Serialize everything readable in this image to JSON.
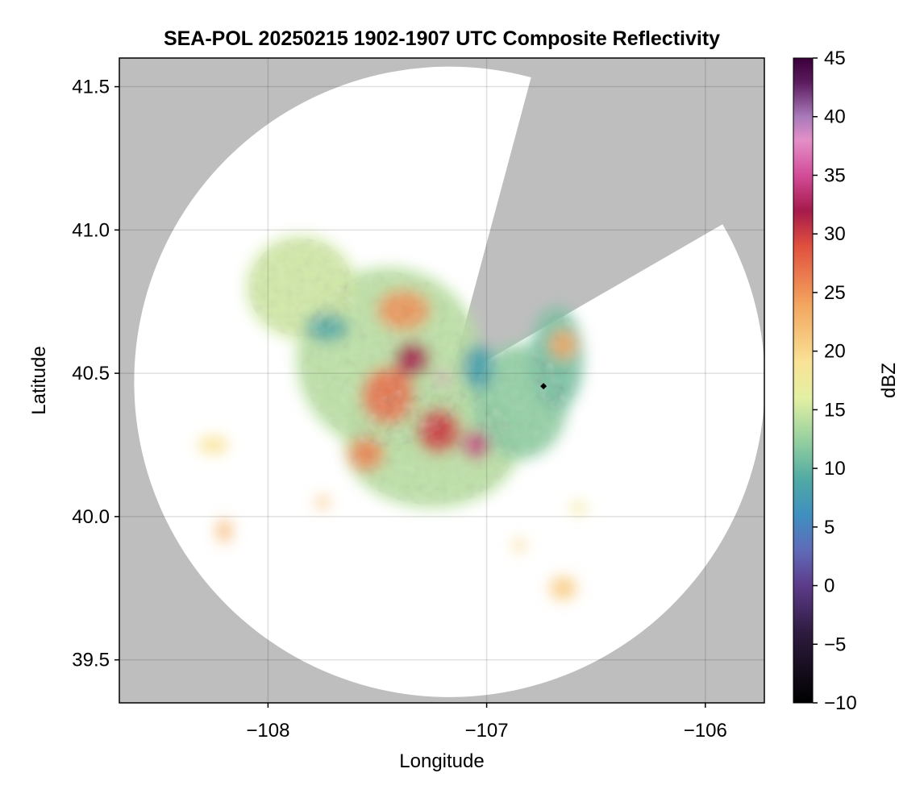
{
  "chart_data": {
    "type": "heatmap",
    "title": "SEA-POL 20250215 1902-1907 UTC Composite Reflectivity",
    "xlabel": "Longitude",
    "ylabel": "Latitude",
    "xlim": [
      -108.68,
      -105.73
    ],
    "ylim": [
      39.35,
      41.6
    ],
    "xticks": [
      -108,
      -107,
      -106
    ],
    "xtick_labels": [
      "−108",
      "−107",
      "−106"
    ],
    "yticks": [
      39.5,
      40.0,
      40.5,
      41.0,
      41.5
    ],
    "ytick_labels": [
      "39.5",
      "40.0",
      "40.5",
      "41.0",
      "41.5"
    ],
    "grid": true,
    "background_color": "#bebebe",
    "radar": {
      "center_lon": -107.17,
      "center_lat": 40.47,
      "range_lat_deg": 1.1,
      "blocked_sector_bearing_deg": [
        15,
        60
      ]
    },
    "marker": {
      "lon": -106.74,
      "lat": 40.455,
      "shape": "diamond",
      "color": "#000000"
    },
    "colorbar": {
      "label": "dBZ",
      "min": -10,
      "max": 45,
      "ticks": [
        -10,
        -5,
        0,
        5,
        10,
        15,
        20,
        25,
        30,
        35,
        40,
        45
      ],
      "tick_labels": [
        "−10",
        "−5",
        "0",
        "5",
        "10",
        "15",
        "20",
        "25",
        "30",
        "35",
        "40",
        "45"
      ],
      "colors": [
        "#000000",
        "#2e1b3f",
        "#5c3b8a",
        "#5f6bb8",
        "#3f8fc0",
        "#4fa9a4",
        "#8dcc9f",
        "#e3f0a3",
        "#f9e396",
        "#f3a55e",
        "#e04f3e",
        "#a51a4b",
        "#d24c98",
        "#e48fc8",
        "#a87ab9",
        "#5a1a5c",
        "#3a0039"
      ],
      "color_stops": [
        -10,
        -4,
        0,
        3,
        6,
        9,
        12,
        16,
        19,
        24,
        29,
        32,
        35,
        38,
        40,
        43,
        45
      ]
    },
    "echo_regions": [
      {
        "lon": -107.45,
        "lat": 40.55,
        "rx": 0.42,
        "ry": 0.32,
        "dbz": 14
      },
      {
        "lon": -107.85,
        "lat": 40.8,
        "rx": 0.25,
        "ry": 0.18,
        "dbz": 15
      },
      {
        "lon": -107.25,
        "lat": 40.25,
        "rx": 0.4,
        "ry": 0.22,
        "dbz": 14
      },
      {
        "lon": -106.85,
        "lat": 40.4,
        "rx": 0.22,
        "ry": 0.2,
        "dbz": 12
      },
      {
        "lon": -106.68,
        "lat": 40.55,
        "rx": 0.12,
        "ry": 0.18,
        "dbz": 11
      },
      {
        "lon": -107.73,
        "lat": 40.66,
        "rx": 0.1,
        "ry": 0.05,
        "dbz": 9
      },
      {
        "lon": -107.38,
        "lat": 40.72,
        "rx": 0.12,
        "ry": 0.07,
        "dbz": 25
      },
      {
        "lon": -107.34,
        "lat": 40.55,
        "rx": 0.08,
        "ry": 0.06,
        "dbz": 32
      },
      {
        "lon": -107.45,
        "lat": 40.42,
        "rx": 0.12,
        "ry": 0.1,
        "dbz": 27
      },
      {
        "lon": -107.22,
        "lat": 40.3,
        "rx": 0.1,
        "ry": 0.08,
        "dbz": 30
      },
      {
        "lon": -107.55,
        "lat": 40.22,
        "rx": 0.08,
        "ry": 0.06,
        "dbz": 26
      },
      {
        "lon": -107.04,
        "lat": 40.52,
        "rx": 0.07,
        "ry": 0.08,
        "dbz": 8
      },
      {
        "lon": -107.2,
        "lat": 40.48,
        "rx": 0.03,
        "ry": 0.02,
        "dbz": 38
      },
      {
        "lon": -107.05,
        "lat": 40.25,
        "rx": 0.06,
        "ry": 0.05,
        "dbz": 34
      },
      {
        "lon": -106.65,
        "lat": 40.6,
        "rx": 0.06,
        "ry": 0.05,
        "dbz": 24
      },
      {
        "lon": -108.25,
        "lat": 40.25,
        "rx": 0.07,
        "ry": 0.03,
        "dbz": 19
      },
      {
        "lon": -108.2,
        "lat": 39.95,
        "rx": 0.03,
        "ry": 0.04,
        "dbz": 23
      },
      {
        "lon": -106.65,
        "lat": 39.75,
        "rx": 0.06,
        "ry": 0.04,
        "dbz": 21
      },
      {
        "lon": -106.58,
        "lat": 40.03,
        "rx": 0.04,
        "ry": 0.02,
        "dbz": 18
      },
      {
        "lon": -106.85,
        "lat": 39.9,
        "rx": 0.03,
        "ry": 0.02,
        "dbz": 20
      },
      {
        "lon": -107.75,
        "lat": 40.05,
        "rx": 0.03,
        "ry": 0.02,
        "dbz": 22
      }
    ]
  }
}
